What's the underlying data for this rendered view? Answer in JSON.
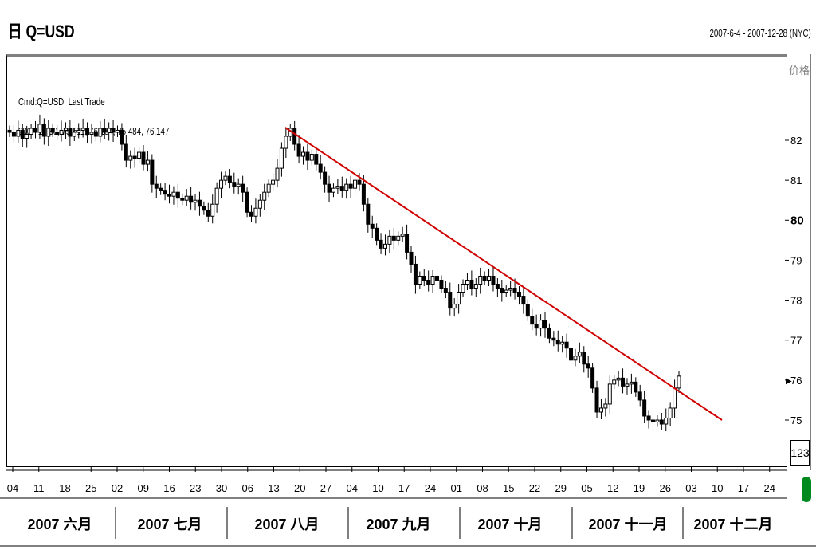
{
  "header": {
    "title": "日 Q=USD",
    "date_range": "2007-6-4 - 2007-12-28 (NYC)",
    "price_label": "价格",
    "last_box": "123"
  },
  "legend": {
    "line1": "Cmd:Q=USD, Last Trade",
    "line2": "2007-11-30, 75.611, 76.184, 75.484, 76.147"
  },
  "chart_data": {
    "type": "candlestick",
    "title": "Q=USD",
    "ylim": [
      74.4,
      83.4
    ],
    "y_ticks": [
      "82",
      "81",
      "80",
      "79",
      "78",
      "77",
      "76",
      "75"
    ],
    "x_ticks": [
      "04",
      "11",
      "18",
      "25",
      "02",
      "09",
      "16",
      "23",
      "30",
      "06",
      "13",
      "20",
      "27",
      "04",
      "10",
      "17",
      "24",
      "01",
      "08",
      "15",
      "22",
      "29",
      "05",
      "12",
      "19",
      "26",
      "03",
      "10",
      "17",
      "24"
    ],
    "months": [
      "2007 六月",
      "2007 七月",
      "2007 八月",
      "2007 九月",
      "2007 十月",
      "2007 十一月",
      "2007 十二月"
    ],
    "trendline": {
      "start": {
        "date": "2007-08-16",
        "value": 82.3
      },
      "end": {
        "date": "2007-12-12",
        "value": 75.05
      },
      "color": "#d00000"
    },
    "closes": [
      82.2,
      82.1,
      82.25,
      82.05,
      82.15,
      82.3,
      82.2,
      82.4,
      82.1,
      82.3,
      82.2,
      82.15,
      82.25,
      82.3,
      82.1,
      82.2,
      82.25,
      82.3,
      82.15,
      82.2,
      82.1,
      82.3,
      82.2,
      82.3,
      82.2,
      82.25,
      81.9,
      81.5,
      81.6,
      81.55,
      81.7,
      81.4,
      81.5,
      80.9,
      80.8,
      80.75,
      80.65,
      80.6,
      80.7,
      80.55,
      80.5,
      80.6,
      80.45,
      80.5,
      80.35,
      80.25,
      80.1,
      80.4,
      80.8,
      81,
      81.1,
      80.95,
      80.85,
      80.9,
      80.7,
      80.2,
      80.1,
      80.3,
      80.5,
      80.7,
      80.9,
      81,
      81.3,
      81.8,
      82.1,
      82.3,
      81.9,
      81.6,
      81.7,
      81.5,
      81.65,
      81.4,
      81.2,
      80.9,
      80.7,
      80.8,
      80.85,
      80.75,
      80.9,
      80.8,
      81,
      80.9,
      80.4,
      79.9,
      79.8,
      79.5,
      79.3,
      79.4,
      79.6,
      79.5,
      79.6,
      79.65,
      79.2,
      78.9,
      78.4,
      78.6,
      78.5,
      78.4,
      78.6,
      78.5,
      78.3,
      78.2,
      77.8,
      77.9,
      78.2,
      78.4,
      78.5,
      78.3,
      78.4,
      78.6,
      78.5,
      78.6,
      78.4,
      78.3,
      78.2,
      78.25,
      78.3,
      78.2,
      78.1,
      77.9,
      77.6,
      77.4,
      77.3,
      77.5,
      77.3,
      77.05,
      77,
      76.9,
      76.95,
      76.8,
      76.5,
      76.6,
      76.7,
      76.4,
      76.3,
      75.8,
      75.2,
      75.3,
      75.4,
      75.9,
      76,
      76.05,
      75.85,
      75.9,
      75.95,
      75.7,
      75.5,
      75.1,
      75,
      74.95,
      75,
      74.9,
      75.05,
      75.3,
      75.8,
      76.1
    ]
  },
  "annotations": {
    "right_arrow": "▶"
  }
}
